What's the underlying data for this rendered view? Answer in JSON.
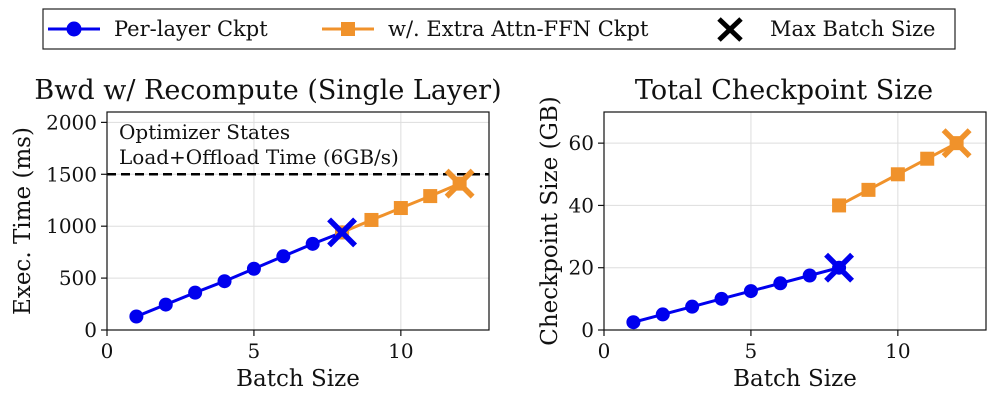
{
  "legend": {
    "entries": [
      {
        "label": "Per-layer Ckpt",
        "color": "#0000ee",
        "marker": "circle"
      },
      {
        "label": "w/. Extra Attn-FFN Ckpt",
        "color": "#f0922b",
        "marker": "square"
      },
      {
        "label": "Max Batch Size",
        "color": "#000000",
        "marker": "x"
      }
    ]
  },
  "chart_data": [
    {
      "type": "line",
      "title": "Bwd w/ Recompute (Single Layer)",
      "xlabel": "Batch Size",
      "ylabel": "Exec. Time (ms)",
      "xlim": [
        0,
        13
      ],
      "ylim": [
        0,
        2100
      ],
      "xticks": [
        0,
        5,
        10
      ],
      "yticks": [
        0,
        500,
        1000,
        1500,
        2000
      ],
      "grid": true,
      "series": [
        {
          "name": "Per-layer Ckpt",
          "color": "#0000ee",
          "marker": "circle",
          "x": [
            1,
            2,
            3,
            4,
            5,
            6,
            7,
            8
          ],
          "y": [
            130,
            245,
            360,
            470,
            590,
            710,
            830,
            940
          ]
        },
        {
          "name": "w/. Extra Attn-FFN Ckpt",
          "color": "#f0922b",
          "marker": "square",
          "x": [
            8,
            9,
            10,
            11,
            12
          ],
          "y": [
            940,
            1060,
            1175,
            1290,
            1410
          ]
        }
      ],
      "max_points": [
        {
          "x": 8,
          "y": 940,
          "color": "#0000ee"
        },
        {
          "x": 12,
          "y": 1410,
          "color": "#f0922b"
        }
      ],
      "hline": {
        "y": 1500,
        "style": "dashed",
        "color": "#000000"
      },
      "annotation": [
        "Optimizer States",
        "Load+Offload Time (6GB/s)"
      ]
    },
    {
      "type": "line",
      "title": "Total Checkpoint Size",
      "xlabel": "Batch Size",
      "ylabel": "Checkpoint Size (GB)",
      "xlim": [
        0,
        13
      ],
      "ylim": [
        0,
        70
      ],
      "xticks": [
        0,
        5,
        10
      ],
      "yticks": [
        0,
        20,
        40,
        60
      ],
      "grid": true,
      "series": [
        {
          "name": "Per-layer Ckpt",
          "color": "#0000ee",
          "marker": "circle",
          "x": [
            1,
            2,
            3,
            4,
            5,
            6,
            7,
            8
          ],
          "y": [
            2.5,
            5,
            7.5,
            10,
            12.5,
            15,
            17.5,
            20
          ]
        },
        {
          "name": "w/. Extra Attn-FFN Ckpt",
          "color": "#f0922b",
          "marker": "square",
          "x": [
            8,
            9,
            10,
            11,
            12
          ],
          "y": [
            40,
            45,
            50,
            55,
            60
          ]
        }
      ],
      "max_points": [
        {
          "x": 8,
          "y": 20,
          "color": "#0000ee"
        },
        {
          "x": 12,
          "y": 60,
          "color": "#f0922b"
        }
      ]
    }
  ]
}
